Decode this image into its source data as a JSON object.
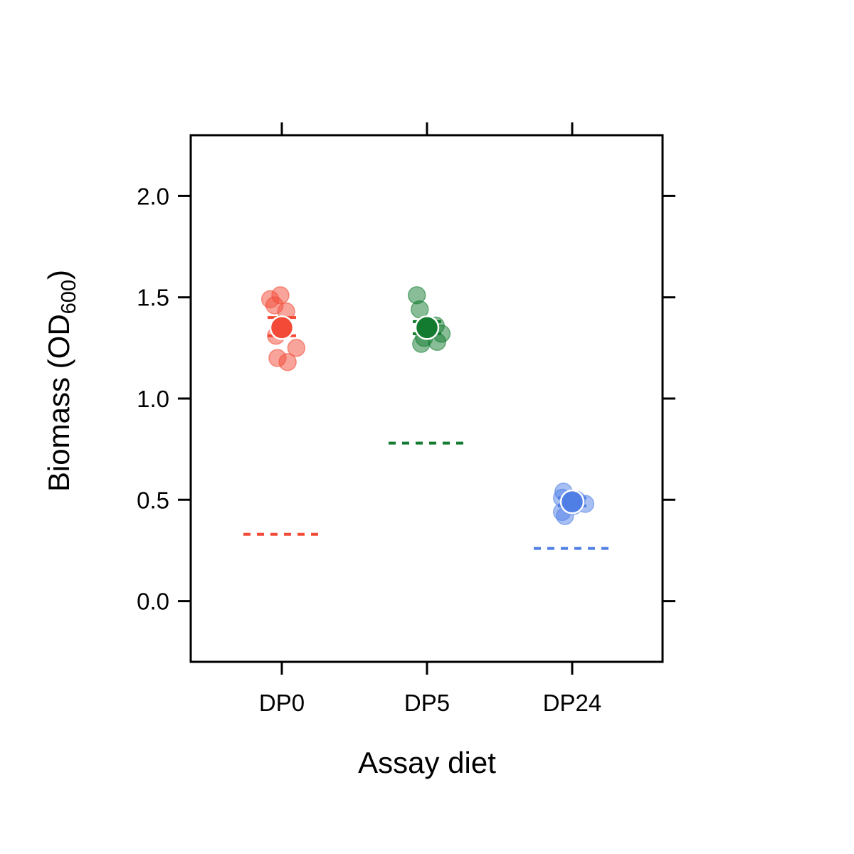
{
  "chart_data": {
    "type": "scatter",
    "xlabel": "Assay diet",
    "ylabel_main": "Biomass (OD",
    "ylabel_sub": "600",
    "ylabel_close": ")",
    "ylim": [
      -0.3,
      2.3
    ],
    "yticks": [
      0.0,
      0.5,
      1.0,
      1.5,
      2.0
    ],
    "ytick_labels": [
      "0.0",
      "0.5",
      "1.0",
      "1.5",
      "2.0"
    ],
    "categories": [
      "DP0",
      "DP5",
      "DP24"
    ],
    "grid": false,
    "legend": "none",
    "groups": [
      {
        "category": "DP0",
        "color": "#F24A36",
        "points": [
          {
            "jitter": -0.08,
            "y": 1.49
          },
          {
            "jitter": -0.01,
            "y": 1.51
          },
          {
            "jitter": -0.05,
            "y": 1.46
          },
          {
            "jitter": 0.03,
            "y": 1.43
          },
          {
            "jitter": -0.04,
            "y": 1.31
          },
          {
            "jitter": 0.1,
            "y": 1.25
          },
          {
            "jitter": -0.03,
            "y": 1.2
          },
          {
            "jitter": 0.04,
            "y": 1.18
          }
        ],
        "mean": 1.35,
        "error": [
          1.31,
          1.4
        ],
        "reference": 0.33
      },
      {
        "category": "DP5",
        "color": "#137B30",
        "points": [
          {
            "jitter": -0.07,
            "y": 1.51
          },
          {
            "jitter": -0.05,
            "y": 1.44
          },
          {
            "jitter": 0.06,
            "y": 1.36
          },
          {
            "jitter": 0.1,
            "y": 1.32
          },
          {
            "jitter": 0.07,
            "y": 1.28
          },
          {
            "jitter": -0.04,
            "y": 1.27
          },
          {
            "jitter": -0.02,
            "y": 1.3
          },
          {
            "jitter": 0.01,
            "y": 1.34
          }
        ],
        "mean": 1.35,
        "error": [
          1.32,
          1.38
        ],
        "reference": 0.78
      },
      {
        "category": "DP24",
        "color": "#4F7FE5",
        "points": [
          {
            "jitter": -0.06,
            "y": 0.54
          },
          {
            "jitter": -0.07,
            "y": 0.51
          },
          {
            "jitter": 0.03,
            "y": 0.5
          },
          {
            "jitter": 0.09,
            "y": 0.48
          },
          {
            "jitter": -0.07,
            "y": 0.44
          },
          {
            "jitter": -0.05,
            "y": 0.42
          },
          {
            "jitter": 0.01,
            "y": 0.47
          }
        ],
        "mean": 0.49,
        "error": [
          0.47,
          0.51
        ],
        "reference": 0.26
      }
    ]
  }
}
